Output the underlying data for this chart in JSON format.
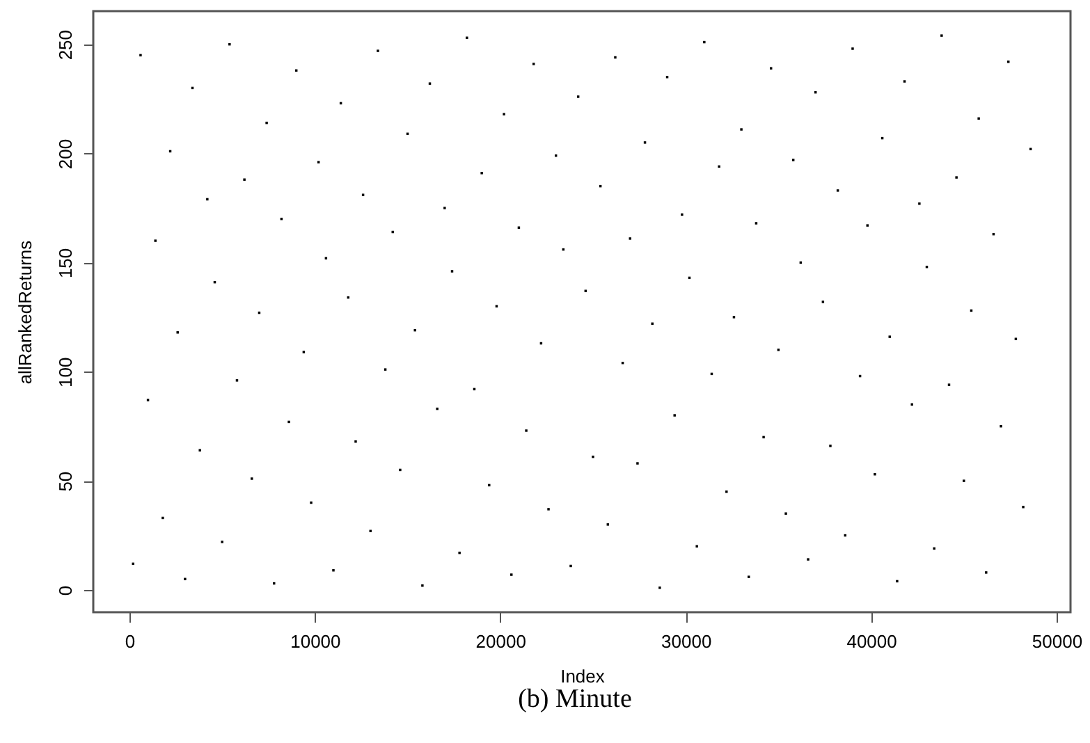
{
  "chart_data": {
    "type": "scatter",
    "xlabel": "Index",
    "ylabel": "allRankedReturns",
    "annotations": [
      "(b) Minute"
    ],
    "xlim": [
      -1950,
      50750
    ],
    "xticks": [
      0,
      10000,
      20000,
      30000,
      40000,
      50000
    ],
    "ylim": [
      -10.2,
      265.2
    ],
    "yticks": [
      0,
      50,
      100,
      150,
      200,
      250
    ],
    "grid": false,
    "marker": "square",
    "x": [
      200,
      600,
      1000,
      1400,
      1800,
      2200,
      2600,
      3000,
      3400,
      3800,
      4200,
      4600,
      5000,
      5400,
      5800,
      6200,
      6600,
      7000,
      7400,
      7800,
      8200,
      8600,
      9000,
      9400,
      9800,
      10200,
      10600,
      11000,
      11400,
      11800,
      12200,
      12600,
      13000,
      13400,
      13800,
      14200,
      14600,
      15000,
      15400,
      15800,
      16200,
      16600,
      17000,
      17400,
      17800,
      18200,
      18600,
      19000,
      19400,
      19800,
      20200,
      20600,
      21000,
      21400,
      21800,
      22200,
      22600,
      23000,
      23400,
      23800,
      24200,
      24600,
      25000,
      25400,
      25800,
      26200,
      26600,
      27000,
      27400,
      27800,
      28200,
      28600,
      29000,
      29400,
      29800,
      30200,
      30600,
      31000,
      31400,
      31800,
      32200,
      32600,
      33000,
      33400,
      33800,
      34200,
      34600,
      35000,
      35400,
      35800,
      36200,
      36600,
      37000,
      37400,
      37800,
      38200,
      38600,
      39000,
      39400,
      39800,
      40200,
      40600,
      41000,
      41400,
      41800,
      42200,
      42600,
      43000,
      43400,
      43800,
      44200,
      44600,
      45000,
      45400,
      45800,
      46200,
      46600,
      47000,
      47400,
      47800,
      48200,
      48600
    ],
    "series": [
      {
        "color": "#000000",
        "values": [
          12,
          245,
          87,
          160,
          33,
          201,
          118,
          5,
          230,
          64,
          179,
          141,
          22,
          250,
          96,
          188,
          51,
          127,
          214,
          3,
          170,
          77,
          238,
          109,
          40,
          196,
          152,
          9,
          223,
          134,
          68,
          181,
          27,
          247,
          101,
          164,
          55,
          209,
          119,
          2,
          232,
          83,
          175,
          146,
          17,
          253,
          92,
          191,
          48,
          130,
          218,
          7,
          166,
          73,
          241,
          113,
          37,
          199,
          156,
          11,
          226,
          137,
          61,
          185,
          30,
          244,
          104,
          161,
          58,
          205,
          122,
          1,
          235,
          80,
          172,
          143,
          20,
          251,
          99,
          194,
          45,
          125,
          211,
          6,
          168,
          70,
          239,
          110,
          35,
          197,
          150,
          14,
          228,
          132,
          66,
          183,
          25,
          248,
          98,
          167,
          53,
          207,
          116,
          4,
          233,
          85,
          177,
          148,
          19,
          254,
          94,
          189,
          50,
          128,
          216,
          8,
          163,
          75,
          242,
          115,
          38,
          202
        ]
      }
    ]
  }
}
